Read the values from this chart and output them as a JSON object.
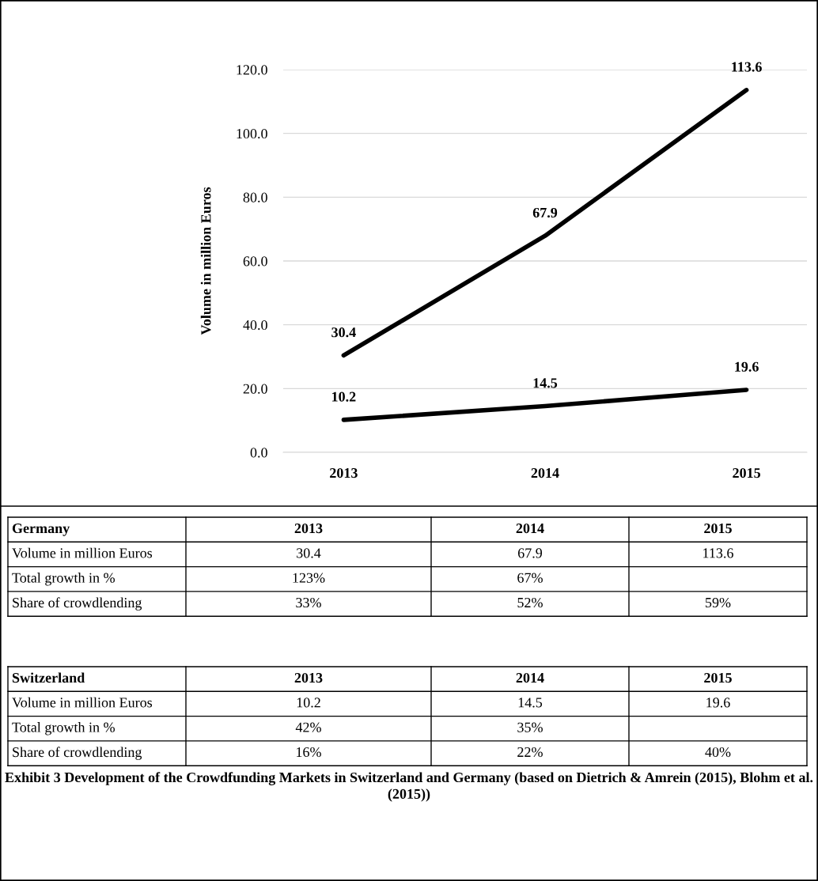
{
  "chart_data": [
    {
      "type": "line",
      "ylabel": "Volume in million Euros",
      "categories": [
        "2013",
        "2014",
        "2015"
      ],
      "series": [
        {
          "color": "#000000",
          "values": [
            30.4,
            67.9,
            113.6
          ]
        },
        {
          "color": "#000000",
          "values": [
            10.2,
            14.5,
            19.6
          ]
        }
      ],
      "ylim": [
        0,
        120
      ],
      "yticks": [
        {
          "value": 0,
          "label": "0.0"
        },
        {
          "value": 20,
          "label": "20.0"
        },
        {
          "value": 40,
          "label": "40.0"
        },
        {
          "value": 60,
          "label": "60.0"
        },
        {
          "value": 80,
          "label": "80.0"
        },
        {
          "value": 100,
          "label": "100.0"
        },
        {
          "value": 120,
          "label": "120.0"
        }
      ],
      "grid": "y",
      "data_labels": true,
      "line_style": "solid"
    },
    {
      "type": "other",
      "title": "Germany",
      "categories": [
        "2013",
        "2014",
        "2015"
      ],
      "data_labels": true,
      "series": [
        {
          "name": "Volume in million Euros",
          "values": [
            30.4,
            67.9,
            113.6
          ],
          "value_labels": [
            "30.4",
            "67.9",
            "113.6"
          ]
        },
        {
          "name": "Total growth in %",
          "values": [
            123,
            67,
            null
          ],
          "value_labels": [
            "123%",
            "67%",
            null
          ]
        },
        {
          "name": "Share of crowdlending",
          "values": [
            33,
            52,
            59
          ],
          "value_labels": [
            "33%",
            "52%",
            "59%"
          ]
        }
      ]
    },
    {
      "type": "other",
      "title": "Switzerland",
      "categories": [
        "2013",
        "2014",
        "2015"
      ],
      "data_labels": true,
      "series": [
        {
          "name": "Volume in million Euros",
          "values": [
            10.2,
            14.5,
            19.6
          ],
          "value_labels": [
            "10.2",
            "14.5",
            "19.6"
          ]
        },
        {
          "name": "Total growth in %",
          "values": [
            42,
            35,
            null
          ],
          "value_labels": [
            "42%",
            "35%",
            null
          ]
        },
        {
          "name": "Share of crowdlending",
          "values": [
            16,
            22,
            40
          ],
          "value_labels": [
            "16%",
            "22%",
            "40%"
          ]
        }
      ],
      "annotations": [
        "Exhibit 3 Development of the Crowdfunding Markets in Switzerland and Germany (based on Dietrich & Amrein (2015), Blohm et al. (2015))"
      ]
    }
  ]
}
